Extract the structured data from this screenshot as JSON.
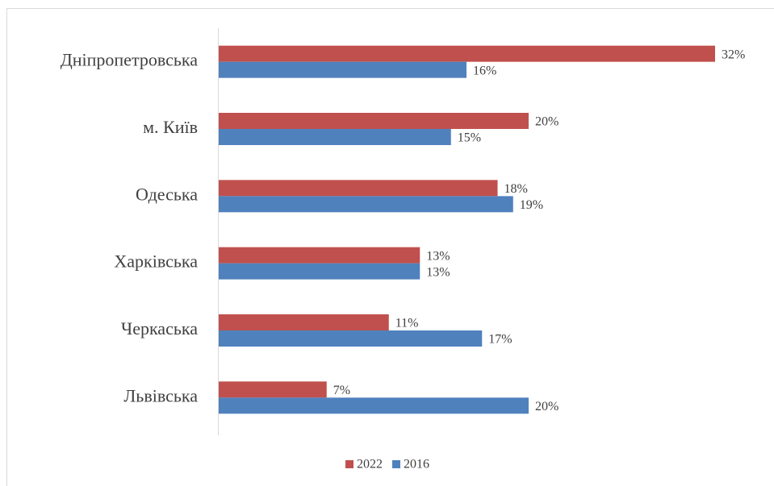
{
  "chart_data": {
    "type": "bar",
    "orientation": "horizontal",
    "categories": [
      "Дніпропетровська",
      "м. Київ",
      "Одеська",
      "Харківська",
      "Черкаська",
      "Львівська"
    ],
    "xlim": [
      0,
      32
    ],
    "series": [
      {
        "name": "2022",
        "color": "#c0504d",
        "values": [
          32,
          20,
          18,
          13,
          11,
          7
        ],
        "value_labels": [
          "32%",
          "20%",
          "18%",
          "13%",
          "11%",
          "7%"
        ]
      },
      {
        "name": "2016",
        "color": "#4f81bd",
        "values": [
          16,
          15,
          19,
          13,
          17,
          20
        ],
        "value_labels": [
          "16%",
          "15%",
          "19%",
          "13%",
          "17%",
          "20%"
        ]
      }
    ],
    "legend": "bottom"
  }
}
